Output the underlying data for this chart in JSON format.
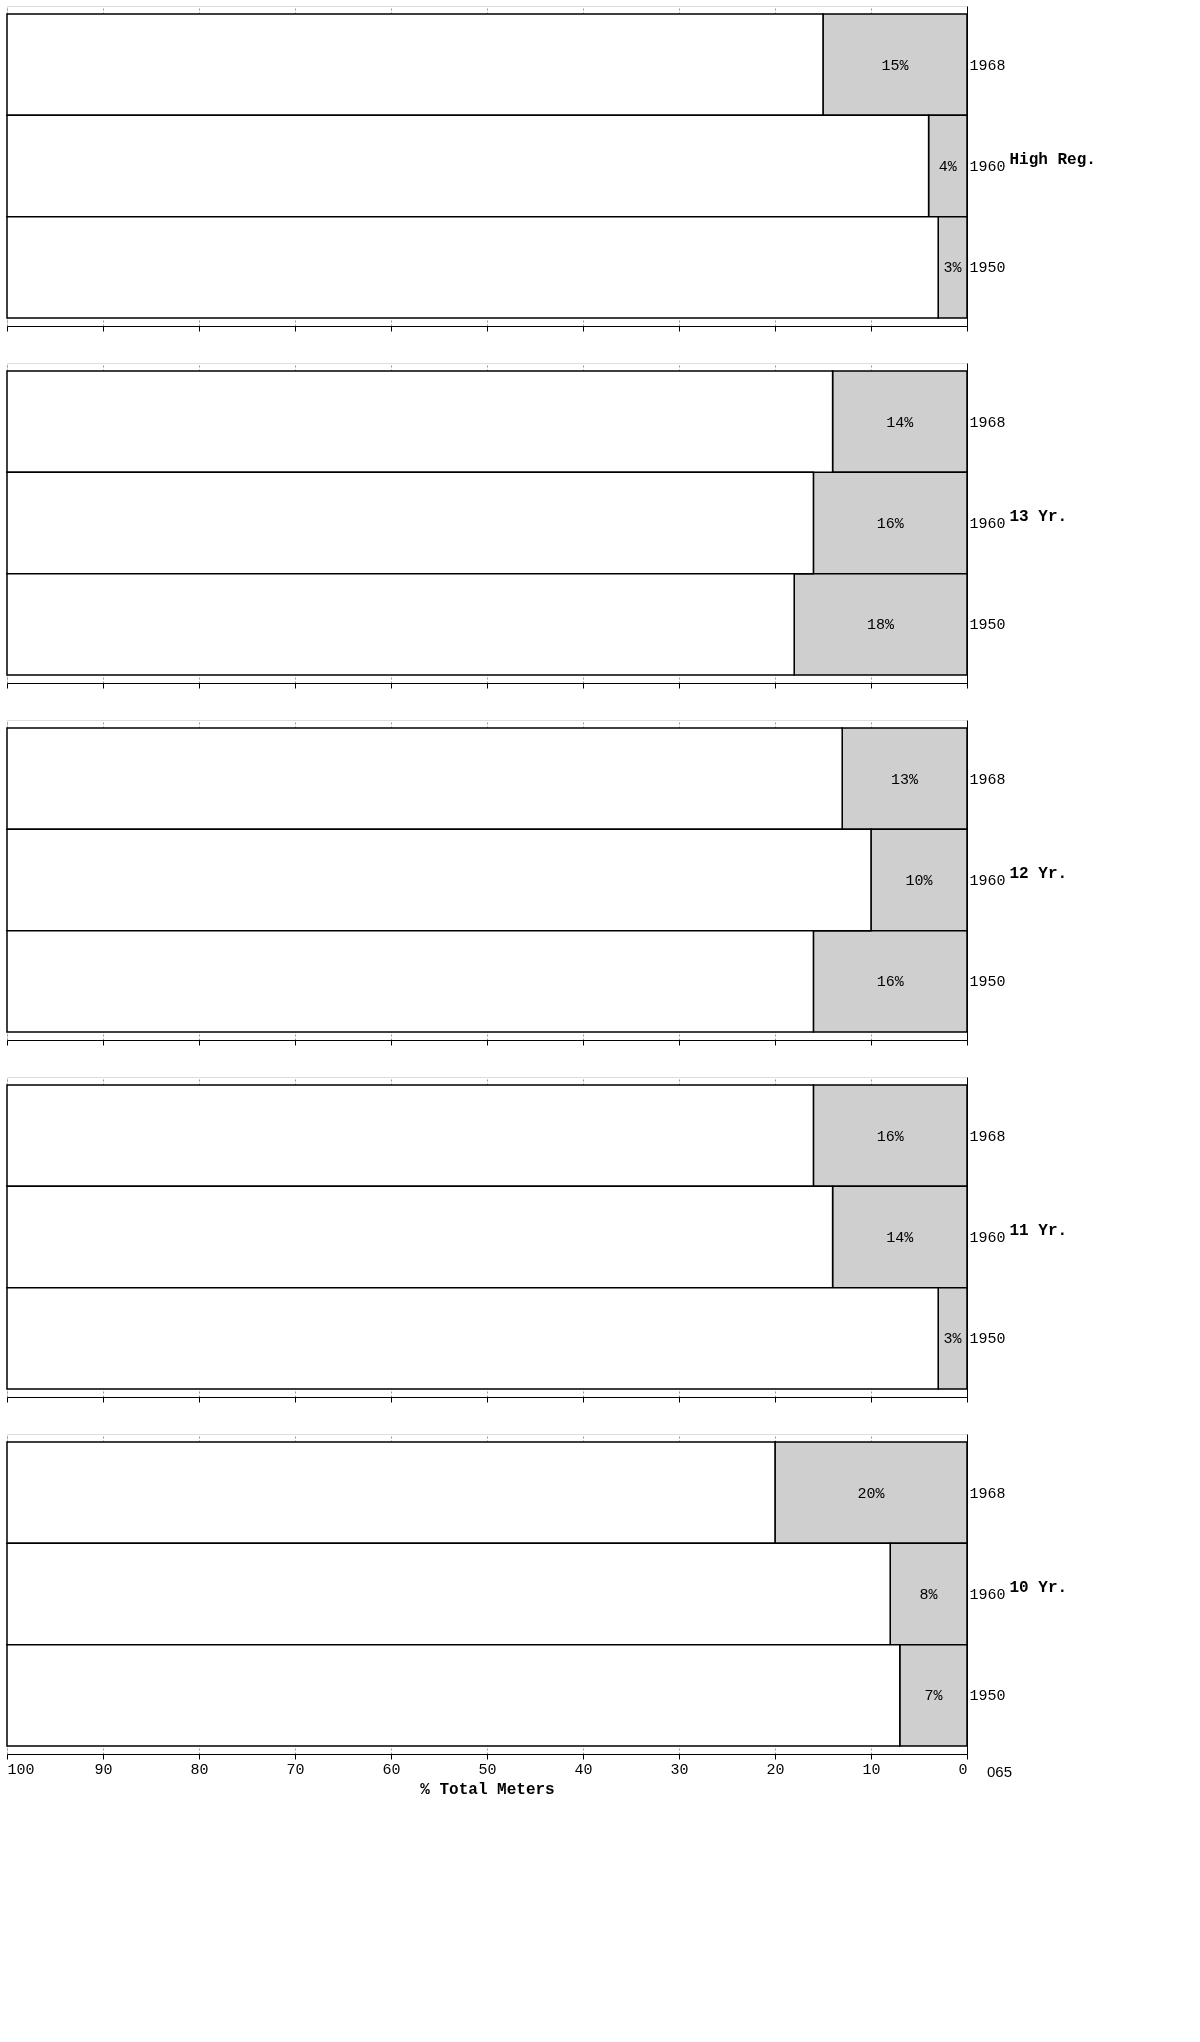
{
  "chart_data": [
    {
      "type": "bar",
      "orientation": "horizontal",
      "stacked": true,
      "ylabel": "High Reg.",
      "categories": [
        "1968",
        "1960",
        "1950"
      ],
      "series": [
        {
          "color": "#cfcfcf",
          "values": [
            15,
            4,
            3
          ],
          "value_labels": [
            "15%",
            "4%",
            "3%"
          ]
        },
        {
          "color": "#ffffff",
          "values": [
            85,
            96,
            97
          ]
        }
      ],
      "xlim": [
        100,
        0
      ],
      "xticks": [
        0,
        10,
        20,
        30,
        40,
        50,
        60,
        70,
        80,
        90,
        100
      ],
      "grid": true,
      "tick_labels": "y"
    },
    {
      "type": "bar",
      "orientation": "horizontal",
      "stacked": true,
      "ylabel": "13 Yr.",
      "categories": [
        "1968",
        "1960",
        "1950"
      ],
      "series": [
        {
          "color": "#cfcfcf",
          "values": [
            14,
            16,
            18
          ],
          "value_labels": [
            "14%",
            "16%",
            "18%"
          ]
        },
        {
          "color": "#ffffff",
          "values": [
            86,
            84,
            82
          ]
        }
      ],
      "xlim": [
        100,
        0
      ],
      "xticks": [
        0,
        10,
        20,
        30,
        40,
        50,
        60,
        70,
        80,
        90,
        100
      ],
      "grid": true,
      "tick_labels": "y"
    },
    {
      "type": "bar",
      "orientation": "horizontal",
      "stacked": true,
      "ylabel": "12 Yr.",
      "categories": [
        "1968",
        "1960",
        "1950"
      ],
      "series": [
        {
          "color": "#cfcfcf",
          "values": [
            13,
            10,
            16
          ],
          "value_labels": [
            "13%",
            "10%",
            "16%"
          ]
        },
        {
          "color": "#ffffff",
          "values": [
            87,
            90,
            84
          ]
        }
      ],
      "xlim": [
        100,
        0
      ],
      "xticks": [
        0,
        10,
        20,
        30,
        40,
        50,
        60,
        70,
        80,
        90,
        100
      ],
      "grid": true,
      "tick_labels": "y"
    },
    {
      "type": "bar",
      "orientation": "horizontal",
      "stacked": true,
      "ylabel": "11 Yr.",
      "categories": [
        "1968",
        "1960",
        "1950"
      ],
      "series": [
        {
          "color": "#cfcfcf",
          "values": [
            16,
            14,
            3
          ],
          "value_labels": [
            "16%",
            "14%",
            "3%"
          ]
        },
        {
          "color": "#ffffff",
          "values": [
            84,
            86,
            97
          ]
        }
      ],
      "xlim": [
        100,
        0
      ],
      "xticks": [
        0,
        10,
        20,
        30,
        40,
        50,
        60,
        70,
        80,
        90,
        100
      ],
      "grid": true,
      "tick_labels": "y"
    },
    {
      "type": "bar",
      "orientation": "horizontal",
      "stacked": true,
      "ylabel": "10 Yr.",
      "xlabel": "% Total Meters",
      "categories": [
        "1968",
        "1960",
        "1950"
      ],
      "series": [
        {
          "color": "#cfcfcf",
          "values": [
            20,
            8,
            7
          ],
          "value_labels": [
            "20%",
            "8%",
            "7%"
          ]
        },
        {
          "color": "#ffffff",
          "values": [
            80,
            92,
            93
          ]
        }
      ],
      "xlim": [
        100,
        0
      ],
      "xticks": [
        0,
        10,
        20,
        30,
        40,
        50,
        60,
        70,
        80,
        90,
        100
      ],
      "grid": true,
      "annotations": [
        "065"
      ]
    }
  ]
}
